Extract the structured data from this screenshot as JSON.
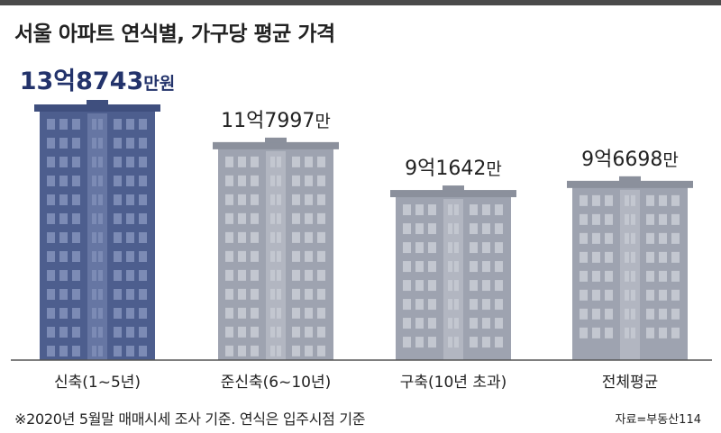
{
  "title": "서울 아파트 연식별, 가구당 평균 가격",
  "footnote": "※2020년 5월말 매매시세 조사 기준. 연식은 입주시점 기준",
  "source": "자료=부동산114",
  "colors": {
    "highlight_building": "#4d5e8e",
    "highlight_window": "#7c8bb5",
    "highlight_roof": "#3f4f7e",
    "highlight_label": "#23336b",
    "building": "#9ea3b0",
    "window": "#c3c7d0",
    "roof": "#8b909c",
    "label": "#222222",
    "baseline": "#555555"
  },
  "chart_data": {
    "type": "bar",
    "title": "서울 아파트 연식별, 가구당 평균 가격",
    "xlabel": "",
    "ylabel": "",
    "unit": "만원",
    "categories": [
      "신축(1~5년)",
      "준신축(6~10년)",
      "구축(10년 초과)",
      "전체평균"
    ],
    "values": [
      138743,
      117997,
      91642,
      96698
    ],
    "value_labels": [
      {
        "main": "13억8743",
        "suffix": "만원"
      },
      {
        "main": "11억7997",
        "suffix": "만"
      },
      {
        "main": "9억1642",
        "suffix": "만"
      },
      {
        "main": "9억6698",
        "suffix": "만"
      }
    ],
    "highlight_index": 0,
    "ylim": [
      0,
      138743
    ],
    "grid": false,
    "legend": "none"
  }
}
